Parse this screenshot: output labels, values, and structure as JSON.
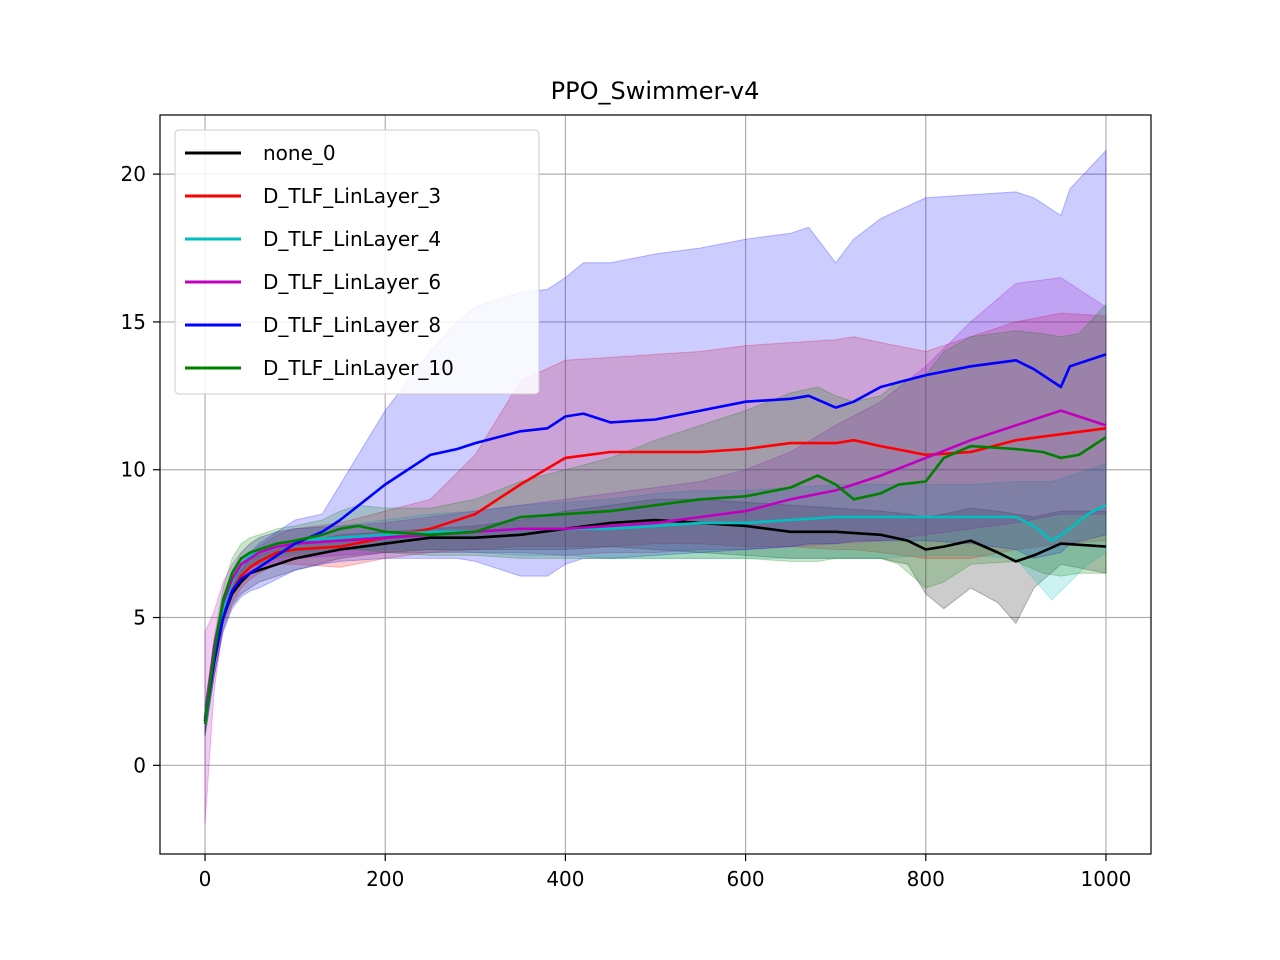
{
  "chart_data": {
    "type": "line",
    "title": "PPO_Swimmer-v4",
    "xlabel": "",
    "ylabel": "",
    "xlim": [
      -50,
      1050
    ],
    "ylim": [
      -3,
      22
    ],
    "xticks": [
      0,
      200,
      400,
      600,
      800,
      1000
    ],
    "yticks": [
      0,
      5,
      10,
      15,
      20
    ],
    "grid": true,
    "legend_position": "top-left",
    "series": [
      {
        "name": "none_0",
        "color": "#000000",
        "x": [
          0,
          10,
          20,
          30,
          40,
          50,
          60,
          80,
          100,
          150,
          200,
          250,
          300,
          350,
          400,
          450,
          500,
          550,
          600,
          650,
          700,
          750,
          780,
          800,
          820,
          850,
          880,
          900,
          920,
          950,
          1000
        ],
        "mean": [
          1.5,
          3.5,
          5.0,
          5.8,
          6.2,
          6.5,
          6.6,
          6.8,
          7.0,
          7.3,
          7.5,
          7.7,
          7.7,
          7.8,
          8.0,
          8.2,
          8.3,
          8.2,
          8.1,
          7.9,
          7.9,
          7.8,
          7.6,
          7.3,
          7.4,
          7.6,
          7.2,
          6.9,
          7.1,
          7.5,
          7.4
        ],
        "lower": [
          1.0,
          3.0,
          4.6,
          5.4,
          5.8,
          6.0,
          6.2,
          6.4,
          6.6,
          7.0,
          7.2,
          7.3,
          7.3,
          7.3,
          7.3,
          7.4,
          7.3,
          7.2,
          7.1,
          7.0,
          7.0,
          7.0,
          6.8,
          5.8,
          5.3,
          6.0,
          5.5,
          4.8,
          6.0,
          6.8,
          6.5
        ],
        "upper": [
          2.0,
          4.0,
          5.5,
          6.2,
          6.6,
          7.0,
          7.1,
          7.3,
          7.5,
          7.8,
          7.9,
          8.0,
          8.1,
          8.3,
          8.6,
          8.8,
          9.0,
          9.0,
          8.9,
          8.8,
          8.7,
          8.6,
          8.5,
          8.4,
          8.5,
          8.7,
          8.6,
          8.5,
          8.4,
          8.6,
          8.6
        ]
      },
      {
        "name": "D_TLF_LinLayer_3",
        "color": "#ff0000",
        "x": [
          0,
          10,
          20,
          30,
          40,
          50,
          60,
          80,
          100,
          150,
          200,
          250,
          300,
          350,
          400,
          450,
          500,
          550,
          600,
          650,
          700,
          720,
          750,
          800,
          850,
          900,
          950,
          1000
        ],
        "mean": [
          1.6,
          3.8,
          5.2,
          5.9,
          6.4,
          6.7,
          6.9,
          7.2,
          7.3,
          7.4,
          7.7,
          8.0,
          8.5,
          9.5,
          10.4,
          10.6,
          10.6,
          10.6,
          10.7,
          10.9,
          10.9,
          11.0,
          10.8,
          10.5,
          10.6,
          11.0,
          11.2,
          11.4
        ],
        "lower": [
          1.2,
          3.4,
          4.8,
          5.5,
          6.0,
          6.3,
          6.5,
          6.8,
          6.8,
          6.7,
          7.0,
          7.2,
          7.3,
          7.4,
          7.4,
          7.4,
          7.5,
          7.5,
          7.4,
          7.4,
          7.3,
          7.3,
          7.2,
          7.0,
          7.0,
          7.3,
          7.5,
          7.6
        ],
        "upper": [
          2.0,
          4.2,
          5.6,
          6.3,
          6.8,
          7.1,
          7.4,
          7.8,
          8.0,
          8.2,
          8.6,
          9.0,
          10.5,
          13.0,
          13.7,
          13.8,
          13.9,
          14.0,
          14.2,
          14.3,
          14.4,
          14.5,
          14.3,
          14.0,
          14.5,
          15.0,
          15.3,
          15.2
        ]
      },
      {
        "name": "D_TLF_LinLayer_4",
        "color": "#00bfbf",
        "x": [
          0,
          10,
          20,
          30,
          40,
          50,
          60,
          80,
          100,
          150,
          200,
          250,
          300,
          350,
          400,
          450,
          500,
          550,
          600,
          650,
          700,
          750,
          800,
          850,
          900,
          920,
          940,
          960,
          980,
          1000
        ],
        "mean": [
          1.6,
          3.8,
          5.3,
          6.2,
          6.8,
          7.1,
          7.3,
          7.5,
          7.6,
          7.7,
          7.8,
          7.9,
          7.9,
          8.0,
          8.0,
          8.0,
          8.1,
          8.2,
          8.2,
          8.3,
          8.4,
          8.4,
          8.4,
          8.4,
          8.4,
          8.1,
          7.6,
          8.0,
          8.5,
          8.8
        ],
        "lower": [
          1.2,
          3.4,
          4.9,
          5.8,
          6.4,
          6.7,
          6.9,
          7.1,
          7.2,
          7.3,
          7.3,
          7.3,
          7.2,
          7.1,
          7.1,
          7.0,
          7.0,
          7.0,
          7.0,
          7.0,
          7.0,
          7.0,
          7.1,
          7.1,
          7.0,
          6.3,
          5.6,
          6.2,
          6.8,
          7.2
        ],
        "upper": [
          2.0,
          4.2,
          5.7,
          6.6,
          7.2,
          7.5,
          7.7,
          7.9,
          8.0,
          8.1,
          8.3,
          8.5,
          8.6,
          8.8,
          8.9,
          9.0,
          9.2,
          9.3,
          9.3,
          9.4,
          9.5,
          9.5,
          9.5,
          9.5,
          9.6,
          9.6,
          9.6,
          9.8,
          10.0,
          10.2
        ]
      },
      {
        "name": "D_TLF_LinLayer_6",
        "color": "#bf00bf",
        "x": [
          0,
          10,
          20,
          30,
          40,
          50,
          60,
          80,
          100,
          150,
          200,
          250,
          300,
          350,
          400,
          450,
          500,
          550,
          600,
          650,
          700,
          750,
          800,
          850,
          900,
          950,
          1000
        ],
        "mean": [
          1.5,
          4.0,
          5.5,
          6.3,
          6.8,
          7.0,
          7.2,
          7.4,
          7.5,
          7.6,
          7.7,
          7.8,
          7.9,
          8.0,
          8.0,
          8.1,
          8.2,
          8.4,
          8.6,
          9.0,
          9.3,
          9.8,
          10.4,
          11.0,
          11.5,
          12.0,
          11.5
        ],
        "lower": [
          -2.0,
          2.5,
          4.8,
          5.8,
          6.3,
          6.5,
          6.7,
          6.9,
          7.0,
          7.1,
          7.2,
          7.2,
          7.2,
          7.2,
          7.1,
          7.2,
          7.2,
          7.3,
          7.3,
          7.4,
          7.5,
          7.6,
          7.8,
          8.0,
          8.2,
          8.5,
          8.5
        ],
        "upper": [
          4.5,
          5.2,
          6.2,
          6.8,
          7.2,
          7.5,
          7.7,
          7.9,
          8.0,
          8.1,
          8.2,
          8.4,
          8.6,
          8.8,
          9.0,
          9.2,
          9.4,
          9.6,
          10.0,
          10.6,
          11.5,
          12.3,
          13.5,
          15.0,
          16.3,
          16.5,
          15.5
        ]
      },
      {
        "name": "D_TLF_LinLayer_8",
        "color": "#0000ff",
        "x": [
          0,
          10,
          20,
          30,
          40,
          50,
          60,
          80,
          100,
          130,
          150,
          200,
          250,
          280,
          300,
          350,
          380,
          400,
          420,
          450,
          500,
          550,
          600,
          650,
          670,
          700,
          720,
          750,
          800,
          850,
          900,
          920,
          950,
          960,
          1000
        ],
        "mean": [
          1.5,
          3.6,
          5.0,
          5.9,
          6.3,
          6.5,
          6.7,
          7.1,
          7.5,
          7.9,
          8.3,
          9.5,
          10.5,
          10.7,
          10.9,
          11.3,
          11.4,
          11.8,
          11.9,
          11.6,
          11.7,
          12.0,
          12.3,
          12.4,
          12.5,
          12.1,
          12.3,
          12.8,
          13.2,
          13.5,
          13.7,
          13.4,
          12.8,
          13.5,
          13.9
        ],
        "lower": [
          1.0,
          3.0,
          4.5,
          5.3,
          5.7,
          5.9,
          6.0,
          6.3,
          6.6,
          6.8,
          6.9,
          7.0,
          7.0,
          7.0,
          6.9,
          6.4,
          6.4,
          6.8,
          7.0,
          7.0,
          7.1,
          7.2,
          7.3,
          7.4,
          7.5,
          7.5,
          7.6,
          7.6,
          7.6,
          7.5,
          7.3,
          7.0,
          7.2,
          7.5,
          7.8
        ],
        "upper": [
          2.0,
          4.2,
          5.5,
          6.5,
          7.0,
          7.2,
          7.5,
          7.9,
          8.3,
          8.5,
          9.5,
          12.0,
          14.0,
          15.0,
          15.5,
          16.0,
          16.1,
          16.5,
          17.0,
          17.0,
          17.3,
          17.5,
          17.8,
          18.0,
          18.2,
          17.0,
          17.8,
          18.5,
          19.2,
          19.3,
          19.4,
          19.2,
          18.6,
          19.5,
          20.8
        ]
      },
      {
        "name": "D_TLF_LinLayer_10",
        "color": "#008000",
        "x": [
          0,
          10,
          20,
          30,
          40,
          50,
          60,
          80,
          100,
          130,
          150,
          170,
          200,
          250,
          300,
          350,
          400,
          450,
          500,
          550,
          600,
          650,
          680,
          700,
          720,
          750,
          770,
          800,
          820,
          850,
          900,
          930,
          950,
          970,
          1000
        ],
        "mean": [
          1.4,
          3.8,
          5.6,
          6.5,
          7.0,
          7.2,
          7.3,
          7.5,
          7.6,
          7.8,
          8.0,
          8.1,
          7.9,
          7.8,
          7.9,
          8.4,
          8.5,
          8.6,
          8.8,
          9.0,
          9.1,
          9.4,
          9.8,
          9.5,
          9.0,
          9.2,
          9.5,
          9.6,
          10.4,
          10.8,
          10.7,
          10.6,
          10.4,
          10.5,
          11.1
        ],
        "lower": [
          1.0,
          3.3,
          5.2,
          6.0,
          6.5,
          6.7,
          6.8,
          7.0,
          7.1,
          7.2,
          7.3,
          7.3,
          7.2,
          7.1,
          7.1,
          7.0,
          7.0,
          7.0,
          7.0,
          7.0,
          7.0,
          6.9,
          6.9,
          7.0,
          7.0,
          7.0,
          6.8,
          6.0,
          6.2,
          6.8,
          6.9,
          6.5,
          6.4,
          6.5,
          6.5
        ],
        "upper": [
          1.8,
          4.3,
          6.0,
          7.0,
          7.5,
          7.7,
          7.8,
          8.0,
          8.1,
          8.3,
          8.6,
          8.8,
          8.7,
          8.7,
          9.0,
          9.6,
          10.0,
          10.4,
          11.0,
          11.5,
          12.0,
          12.6,
          12.8,
          12.5,
          12.3,
          12.5,
          13.0,
          13.2,
          14.0,
          14.5,
          14.7,
          14.6,
          14.5,
          14.6,
          15.6
        ]
      }
    ]
  }
}
